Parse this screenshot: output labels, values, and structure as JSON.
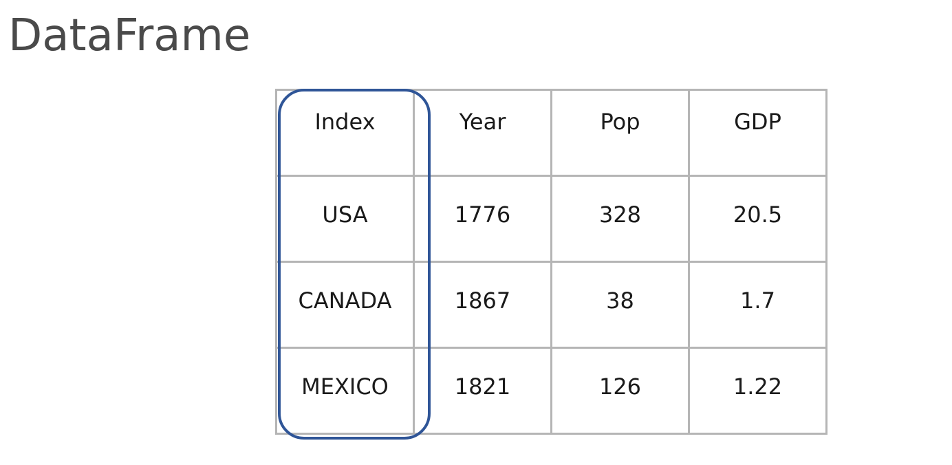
{
  "title": "DataFrame",
  "table": {
    "header": [
      "Index",
      "Year",
      "Pop",
      "GDP"
    ],
    "rows": [
      [
        "USA",
        "1776",
        "328",
        "20.5"
      ],
      [
        "CANADA",
        "1867",
        "38",
        "1.7"
      ],
      [
        "MEXICO",
        "1821",
        "126",
        "1.22"
      ]
    ]
  },
  "colors": {
    "index_highlight": "#2f5597",
    "grid": "#b5b5b5",
    "title_text": "#4a4a4a",
    "cell_text": "#1a1a1a"
  }
}
